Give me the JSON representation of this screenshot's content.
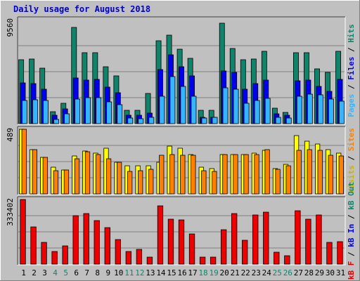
{
  "chart_data": {
    "type": "bar",
    "title": "Daily usage for August 2018",
    "categories": [
      "1",
      "2",
      "3",
      "4",
      "5",
      "6",
      "7",
      "8",
      "9",
      "10",
      "11",
      "12",
      "13",
      "14",
      "15",
      "16",
      "17",
      "18",
      "19",
      "20",
      "21",
      "22",
      "23",
      "24",
      "25",
      "26",
      "27",
      "28",
      "29",
      "30",
      "31"
    ],
    "weekend_days": [
      "4",
      "5",
      "11",
      "12",
      "18",
      "19",
      "25",
      "26"
    ],
    "panels": [
      {
        "id": "hits",
        "max_label": "9560",
        "ymax": 9560,
        "right_label": [
          {
            "text": "Pages",
            "color": "#33b5ff"
          },
          {
            "text": " / ",
            "color": "#000000"
          },
          {
            "text": "Files",
            "color": "#0000ee"
          },
          {
            "text": " / ",
            "color": "#000000"
          },
          {
            "text": "Hits",
            "color": "#10846a"
          }
        ],
        "series": [
          {
            "name": "Hits",
            "color": "#10846a",
            "values": [
              5900,
              5950,
              5100,
              1100,
              1900,
              8850,
              6550,
              6550,
              5250,
              4400,
              1250,
              1250,
              2800,
              7600,
              8150,
              6850,
              6000,
              1250,
              1250,
              9250,
              6900,
              5850,
              5950,
              6650,
              1400,
              1050,
              6550,
              6550,
              5050,
              4700,
              6650
            ]
          },
          {
            "name": "Files",
            "color": "#0000ee",
            "values": [
              3750,
              3700,
              3150,
              800,
              1350,
              4200,
              4000,
              4100,
              3350,
              2850,
              800,
              800,
              950,
              5000,
              6350,
              5200,
              4400,
              600,
              600,
              4850,
              4700,
              3150,
              3700,
              4000,
              900,
              750,
              3950,
              4000,
              3400,
              3000,
              4050
            ]
          },
          {
            "name": "Pages",
            "color": "#33b5ff",
            "values": [
              2150,
              2200,
              2150,
              400,
              900,
              2250,
              2400,
              2400,
              2000,
              1750,
              500,
              450,
              550,
              2550,
              4300,
              3450,
              2500,
              500,
              550,
              3300,
              3150,
              1850,
              2150,
              2300,
              600,
              500,
              2500,
              2700,
              2650,
              2250,
              2050
            ]
          }
        ]
      },
      {
        "id": "visits",
        "max_label": "489",
        "ymax": 489,
        "right_label": [
          {
            "text": "Visits",
            "color": "#c8b400"
          },
          {
            "text": " / ",
            "color": "#000000"
          },
          {
            "text": "Sites",
            "color": "#ff8000"
          }
        ],
        "series": [
          {
            "name": "Visits",
            "color": "#ffff00",
            "values": [
              489,
              335,
              275,
              200,
              180,
              285,
              325,
              310,
              345,
              240,
              210,
              215,
              212,
              240,
              360,
              345,
              300,
              200,
              190,
              300,
              300,
              300,
              310,
              330,
              190,
              225,
              440,
              400,
              375,
              335,
              310
            ]
          },
          {
            "name": "Sites",
            "color": "#ff8000",
            "values": [
              489,
              335,
              275,
              175,
              180,
              265,
              320,
              295,
              265,
              240,
              170,
              175,
              185,
              290,
              295,
              290,
              290,
              175,
              170,
              295,
              295,
              295,
              295,
              333,
              185,
              215,
              330,
              335,
              330,
              290,
              285
            ]
          }
        ]
      },
      {
        "id": "kbytes",
        "max_label": "333402",
        "ymax": 333402,
        "right_label": [
          {
            "text": "kB F",
            "color": "#dd0000"
          },
          {
            "text": " / ",
            "color": "#000000"
          },
          {
            "text": "kB In",
            "color": "#0000ee"
          },
          {
            "text": " / ",
            "color": "#000000"
          },
          {
            "text": "kB Out",
            "color": "#10846a"
          }
        ],
        "series": [
          {
            "name": "kB F",
            "color": "#ee0000",
            "values": [
              333402,
              193000,
              111000,
              64000,
              93000,
              250000,
              262000,
              224000,
              189000,
              126000,
              64000,
              77000,
              35000,
              302000,
              232000,
              230000,
              156000,
              35000,
              35000,
              176000,
              261000,
              124000,
              252000,
              269000,
              60000,
              44000,
              274000,
              232000,
              253000,
              111000,
              116000
            ]
          }
        ]
      }
    ]
  }
}
